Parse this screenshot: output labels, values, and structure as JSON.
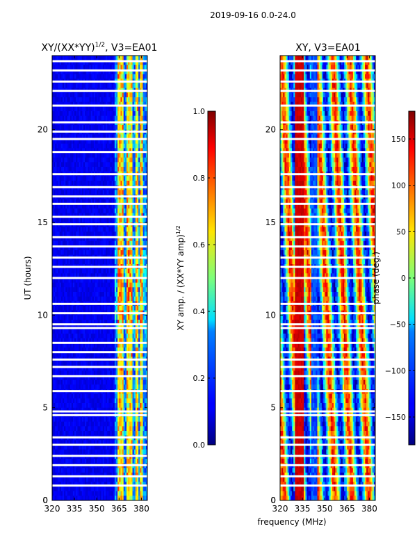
{
  "figure": {
    "suptitle": "2019-09-16 0.0-24.0",
    "xlabel": "frequency (MHz)"
  },
  "chart_data": [
    {
      "type": "heatmap",
      "title_main": "XY/(XX*YY)",
      "title_exp": "1/2",
      "title_rest": ", V3=EA01",
      "ylabel": "UT (hours)",
      "xlim": [
        320,
        384
      ],
      "ylim": [
        0,
        24
      ],
      "xticks": [
        320,
        335,
        350,
        365,
        380
      ],
      "yticks": [
        0,
        5,
        10,
        15,
        20
      ],
      "bright_channels_mhz": [
        365,
        367,
        371,
        373,
        377,
        380
      ],
      "flagged_ut_hours": [
        0.8,
        1.3,
        1.9,
        2.4,
        3.0,
        3.4,
        4.6,
        4.8,
        5.9,
        6.7,
        7.2,
        7.6,
        8.0,
        8.5,
        9.3,
        9.5,
        10.1,
        10.6,
        12.0,
        12.6,
        13.1,
        13.7,
        14.2,
        14.9,
        15.3,
        16.0,
        16.4,
        16.9,
        17.6,
        18.8,
        19.5,
        19.9,
        20.4,
        21.3,
        22.1,
        22.6,
        23.2,
        23.7
      ],
      "colorbar": {
        "label_main": "XY amp. / (XX*YY amp)",
        "label_exp": "1/2",
        "vmin": 0.0,
        "vmax": 1.0,
        "ticks": [
          "0.0",
          "0.2",
          "0.4",
          "0.6",
          "0.8",
          "1.0"
        ]
      }
    },
    {
      "type": "heatmap",
      "title": "XY, V3=EA01",
      "xlim": [
        320,
        384
      ],
      "ylim": [
        0,
        24
      ],
      "xticks": [
        320,
        335,
        350,
        365,
        380
      ],
      "yticks": [
        0,
        5,
        10,
        15,
        20
      ],
      "colorbar": {
        "label": "phase (deg.)",
        "vmin": -180,
        "vmax": 180,
        "ticks": [
          "−150",
          "−100",
          "−50",
          "0",
          "50",
          "100",
          "150"
        ]
      }
    }
  ]
}
